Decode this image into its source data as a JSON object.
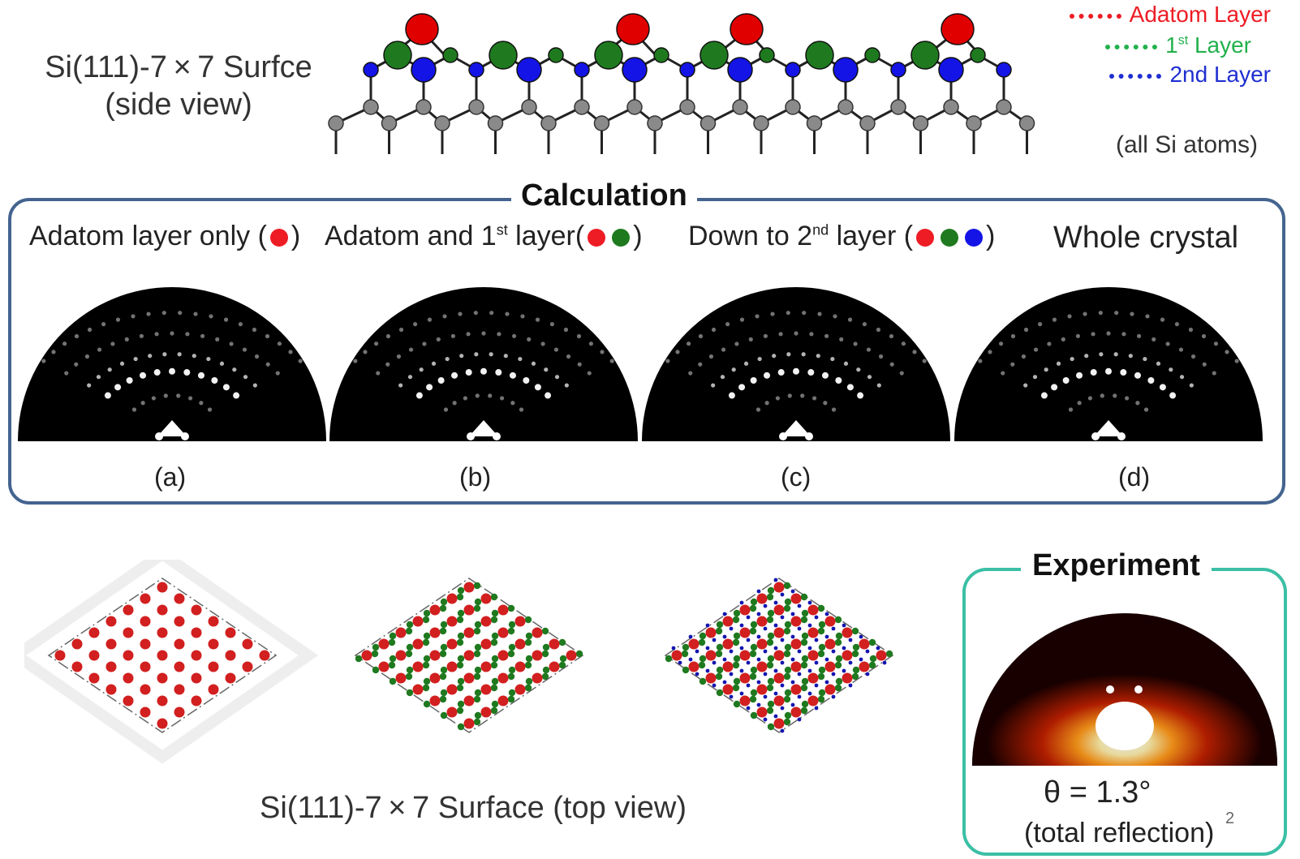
{
  "side_view": {
    "title_line1": "Si(111)-7 × 7 Surfce",
    "title_line2": "(side view)",
    "note": "(all Si atoms)"
  },
  "legend": {
    "adatom": "Adatom Layer",
    "first_prefix": "1",
    "first_sup": "st",
    "first_suffix": "Layer",
    "second": "2nd Layer",
    "colors": {
      "adatom": "#ee1c24",
      "first": "#22b14c",
      "second": "#1f2fd1",
      "bulk": "#8a8a8a"
    }
  },
  "calculation": {
    "title": "Calculation",
    "conditions": {
      "a": "Adatom layer only (",
      "a_close": ")",
      "b_pre": "Adatom and 1",
      "b_sup": "st",
      "b_post": " layer(",
      "b_close": ")",
      "c_pre": "Down to 2",
      "c_sup": "nd",
      "c_post": " layer (",
      "c_close": ")",
      "d": "Whole crystal"
    },
    "panel_labels": [
      "(a)",
      "(b)",
      "(c)",
      "(d)"
    ]
  },
  "top_view": {
    "caption": "Si(111)-7 × 7 Surface (top view)"
  },
  "experiment": {
    "title": "Experiment",
    "theta": "θ = 1.3°",
    "condition": "(total reflection)",
    "page_number": "2"
  }
}
